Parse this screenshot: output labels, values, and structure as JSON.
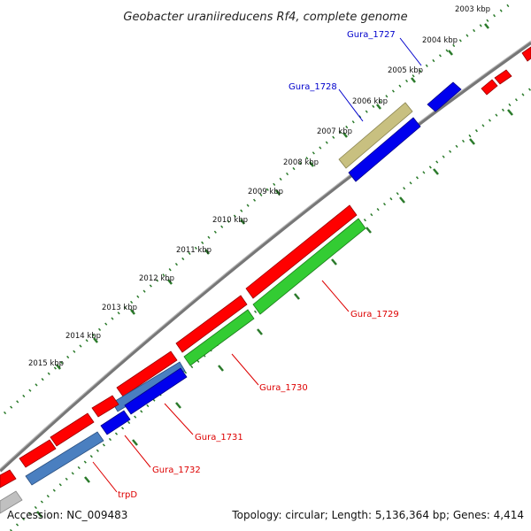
{
  "title": "Geobacter uraniireducens Rf4, complete genome",
  "footer": {
    "accession": "Accession: NC_009483",
    "summary": "Topology: circular; Length: 5,136,364 bp; Genes: 4,414"
  },
  "ticks": [
    "2003 kbp",
    "2004 kbp",
    "2005 kbp",
    "2006 kbp",
    "2007 kbp",
    "2008 kbp",
    "2009 kbp",
    "2010 kbp",
    "2011 kbp",
    "2012 kbp",
    "2013 kbp",
    "2014 kbp",
    "2015 kbp"
  ],
  "gene_labels": {
    "gura_1727": "Gura_1727",
    "gura_1728": "Gura_1728",
    "gura_1729": "Gura_1729",
    "gura_1730": "Gura_1730",
    "gura_1731": "Gura_1731",
    "gura_1732": "Gura_1732",
    "trpd": "trpD"
  },
  "colors": {
    "backbone": "#777777",
    "tick": "#2a7a2a",
    "red": "#ff0000",
    "blue": "#0000ee",
    "green": "#33cc33",
    "steelblue": "#4a7fc0",
    "khaki": "#c8c080",
    "gray": "#c0c0c0",
    "label_blue": "#0000cc",
    "label_red": "#dd0000"
  }
}
